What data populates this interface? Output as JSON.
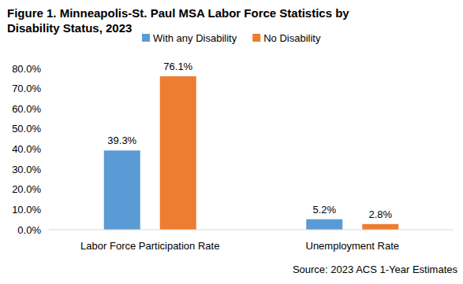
{
  "chart_data": {
    "type": "bar",
    "title": "Figure 1. Minneapolis-St. Paul MSA Labor Force Statistics by Disability Status, 2023",
    "source": "Source: 2023 ACS 1-Year Estimates",
    "categories": [
      "Labor Force Participation Rate",
      "Unemployment Rate"
    ],
    "series": [
      {
        "name": "With any Disability",
        "color": "#5b9bd5",
        "values": [
          39.3,
          5.2
        ],
        "value_labels": [
          "39.3%",
          "5.2%"
        ]
      },
      {
        "name": "No Disability",
        "color": "#ed7d31",
        "values": [
          76.1,
          2.8
        ],
        "value_labels": [
          "76.1%",
          "2.8%"
        ]
      }
    ],
    "ylim": [
      0,
      80
    ],
    "yticks": [
      {
        "value": 0,
        "label": "0.0%"
      },
      {
        "value": 10,
        "label": "10.0%"
      },
      {
        "value": 20,
        "label": "20.0%"
      },
      {
        "value": 30,
        "label": "30.0%"
      },
      {
        "value": 40,
        "label": "40.0%"
      },
      {
        "value": 50,
        "label": "50.0%"
      },
      {
        "value": 60,
        "label": "60.0%"
      },
      {
        "value": 70,
        "label": "70.0%"
      },
      {
        "value": 80,
        "label": "80.0%"
      }
    ],
    "grid": false,
    "legend": "top",
    "data_labels": true
  }
}
